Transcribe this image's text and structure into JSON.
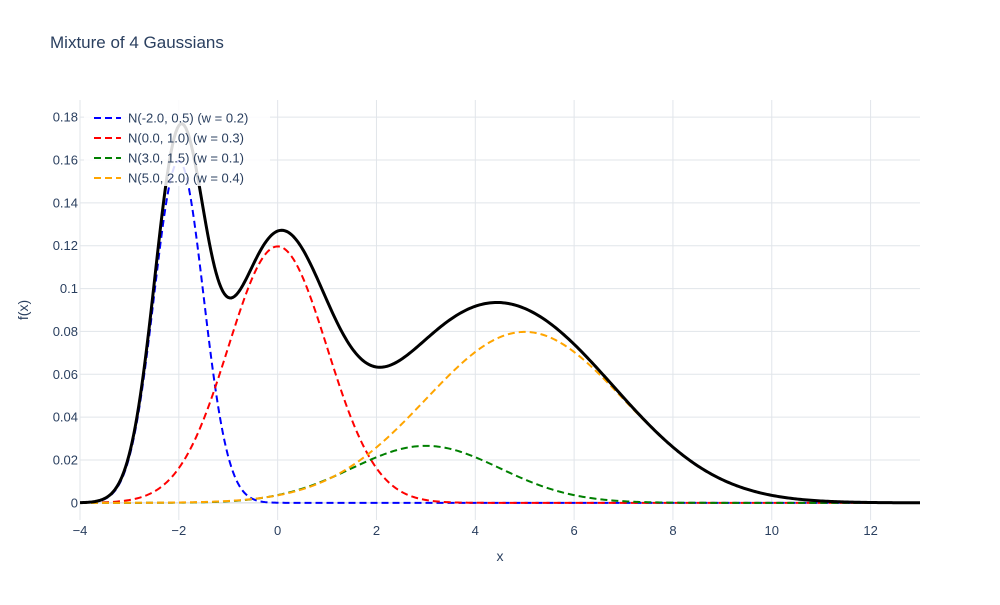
{
  "chart_data": {
    "type": "line",
    "title": "Mixture of 4 Gaussians",
    "xlabel": "x",
    "ylabel": "f(x)",
    "xlim": [
      -4,
      13
    ],
    "ylim": [
      -0.008,
      0.188
    ],
    "x_ticks": [
      -4,
      -2,
      0,
      2,
      4,
      6,
      8,
      10,
      12
    ],
    "y_ticks": [
      0,
      0.02,
      0.04,
      0.06,
      0.08,
      0.1,
      0.12,
      0.14,
      0.16,
      0.18
    ],
    "x_tick_labels": [
      "−4",
      "−2",
      "0",
      "2",
      "4",
      "6",
      "8",
      "10",
      "12"
    ],
    "y_tick_labels": [
      "0",
      "0.02",
      "0.04",
      "0.06",
      "0.08",
      "0.1",
      "0.12",
      "0.14",
      "0.16",
      "0.18"
    ],
    "grid": true,
    "legend_position": "top-left",
    "series": [
      {
        "name": "N(-2.0, 0.5) (w = 0.2)",
        "mu": -2.0,
        "sigma": 0.5,
        "weight": 0.2,
        "color": "#0000ff",
        "dash": "dashed"
      },
      {
        "name": "N(0.0, 1.0) (w = 0.3)",
        "mu": 0.0,
        "sigma": 1.0,
        "weight": 0.3,
        "color": "#ff0000",
        "dash": "dashed"
      },
      {
        "name": "N(3.0, 1.5) (w = 0.1)",
        "mu": 3.0,
        "sigma": 1.5,
        "weight": 0.1,
        "color": "#008000",
        "dash": "dashed"
      },
      {
        "name": "N(5.0, 2.0) (w = 0.4)",
        "mu": 5.0,
        "sigma": 2.0,
        "weight": 0.4,
        "color": "#ffa500",
        "dash": "dashed"
      }
    ],
    "total_series": {
      "color": "#000000",
      "dash": "solid"
    }
  }
}
